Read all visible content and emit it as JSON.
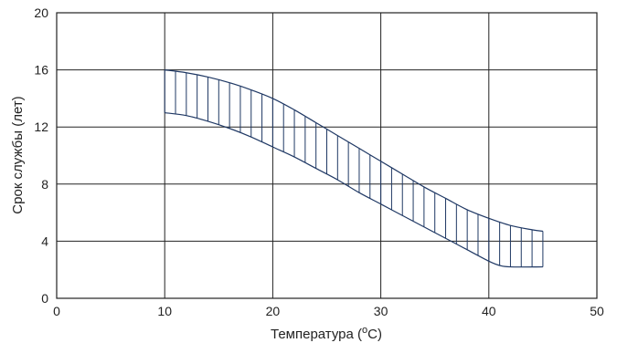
{
  "chart_data": {
    "type": "area",
    "title": "",
    "xlabel": "Температура (",
    "xlabel_degree": "o",
    "xlabel_suffix": "C)",
    "ylabel": "Срок службы (лет)",
    "xlim": [
      0,
      50
    ],
    "ylim": [
      0,
      20
    ],
    "xticks": [
      "0",
      "10",
      "20",
      "30",
      "40",
      "50"
    ],
    "yticks": [
      "0",
      "4",
      "8",
      "12",
      "16",
      "20"
    ],
    "grid": true,
    "band": {
      "upper": [
        [
          10,
          16.0
        ],
        [
          12,
          15.8
        ],
        [
          14,
          15.5
        ],
        [
          16,
          15.1
        ],
        [
          18,
          14.6
        ],
        [
          20,
          14.0
        ],
        [
          22,
          13.2
        ],
        [
          24,
          12.3
        ],
        [
          26,
          11.4
        ],
        [
          28,
          10.5
        ],
        [
          30,
          9.6
        ],
        [
          32,
          8.7
        ],
        [
          34,
          7.8
        ],
        [
          36,
          7.0
        ],
        [
          38,
          6.2
        ],
        [
          40,
          5.6
        ],
        [
          42,
          5.1
        ],
        [
          44,
          4.8
        ],
        [
          45,
          4.7
        ]
      ],
      "lower": [
        [
          10,
          13.0
        ],
        [
          12,
          12.8
        ],
        [
          14,
          12.4
        ],
        [
          16,
          11.9
        ],
        [
          18,
          11.3
        ],
        [
          20,
          10.6
        ],
        [
          22,
          9.9
        ],
        [
          24,
          9.1
        ],
        [
          26,
          8.3
        ],
        [
          28,
          7.4
        ],
        [
          30,
          6.6
        ],
        [
          32,
          5.8
        ],
        [
          34,
          5.0
        ],
        [
          36,
          4.2
        ],
        [
          38,
          3.4
        ],
        [
          40,
          2.6
        ],
        [
          41,
          2.3
        ],
        [
          42,
          2.2
        ],
        [
          45,
          2.2
        ]
      ]
    },
    "hatch_step": 1,
    "colors": {
      "band": "#1f3864",
      "grid": "#222222",
      "text": "#222222"
    }
  }
}
